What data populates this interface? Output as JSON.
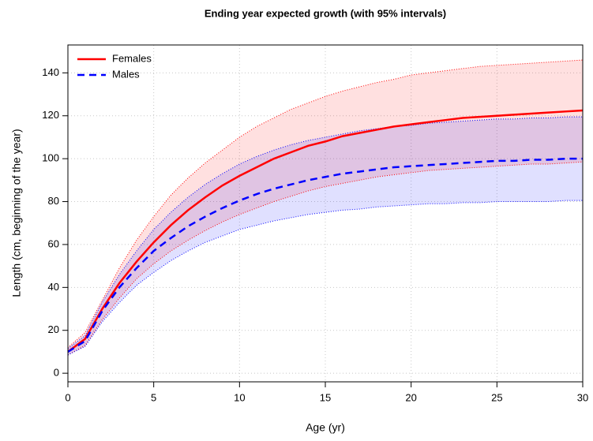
{
  "chart_data": {
    "type": "line",
    "title": "Ending year expected growth (with 95% intervals)",
    "x_label": "Age (yr)",
    "y_label": "Length (cm, beginning of the year)",
    "x": [
      0,
      1,
      2,
      3,
      4,
      5,
      6,
      7,
      8,
      9,
      10,
      11,
      12,
      13,
      14,
      15,
      16,
      17,
      18,
      19,
      20,
      21,
      22,
      23,
      24,
      25,
      26,
      27,
      28,
      29,
      30
    ],
    "series": [
      {
        "name": "Females",
        "color": "#ff0000",
        "line_style": "solid",
        "values": [
          10,
          16,
          30,
          42,
          52,
          61,
          69,
          76,
          82,
          87.5,
          92,
          96,
          100,
          103,
          106,
          108,
          110.5,
          112,
          113.5,
          115,
          116,
          117,
          118,
          119,
          119.5,
          120,
          120.5,
          121,
          121.5,
          122,
          122.5
        ],
        "upper": [
          12,
          19,
          34,
          49,
          62,
          73,
          83,
          91,
          98,
          104,
          110,
          115,
          119,
          123,
          126,
          129,
          131.5,
          133.5,
          135.5,
          137,
          139,
          140,
          141,
          142,
          143,
          143.5,
          144,
          144.5,
          145,
          145.5,
          146
        ],
        "lower": [
          8.5,
          13,
          25,
          35,
          44,
          51,
          57,
          62,
          66.5,
          70.5,
          74,
          77,
          80,
          82.5,
          85,
          87,
          88.5,
          90,
          91.5,
          92.5,
          93.5,
          94.5,
          95,
          95.5,
          96,
          96.5,
          97,
          97.5,
          97.5,
          98,
          98.5
        ]
      },
      {
        "name": "Males",
        "color": "#0000ff",
        "line_style": "dashed",
        "values": [
          10,
          15,
          29,
          40,
          49,
          57,
          63,
          68.5,
          73,
          77,
          80.5,
          83.5,
          86,
          88,
          90,
          91.5,
          93,
          94,
          95,
          96,
          96.5,
          97,
          97.5,
          98,
          98.5,
          99,
          99,
          99.5,
          99.5,
          100,
          100
        ],
        "upper": [
          11.5,
          17.5,
          33,
          46,
          57,
          67,
          75,
          82,
          88,
          93,
          97.5,
          101,
          104,
          106.5,
          108.5,
          110,
          111.5,
          113,
          114,
          115,
          115.5,
          116.5,
          117,
          117.5,
          118,
          118.5,
          118.5,
          119,
          119,
          119.5,
          119.5
        ],
        "lower": [
          8.5,
          12.5,
          24,
          33,
          41,
          47,
          52.5,
          57,
          61,
          64,
          67,
          69,
          71,
          72.5,
          74,
          75,
          76,
          76.5,
          77.5,
          78,
          78.5,
          79,
          79,
          79.5,
          79.5,
          80,
          80,
          80,
          80,
          80.5,
          80.5
        ]
      }
    ],
    "xlim": [
      0,
      30
    ],
    "xticks": [
      0,
      5,
      10,
      15,
      20,
      25,
      30
    ],
    "ylim": [
      -4,
      153
    ],
    "yticks": [
      0,
      20,
      40,
      60,
      80,
      100,
      120,
      140
    ],
    "grid": true,
    "legend": "top-left"
  }
}
